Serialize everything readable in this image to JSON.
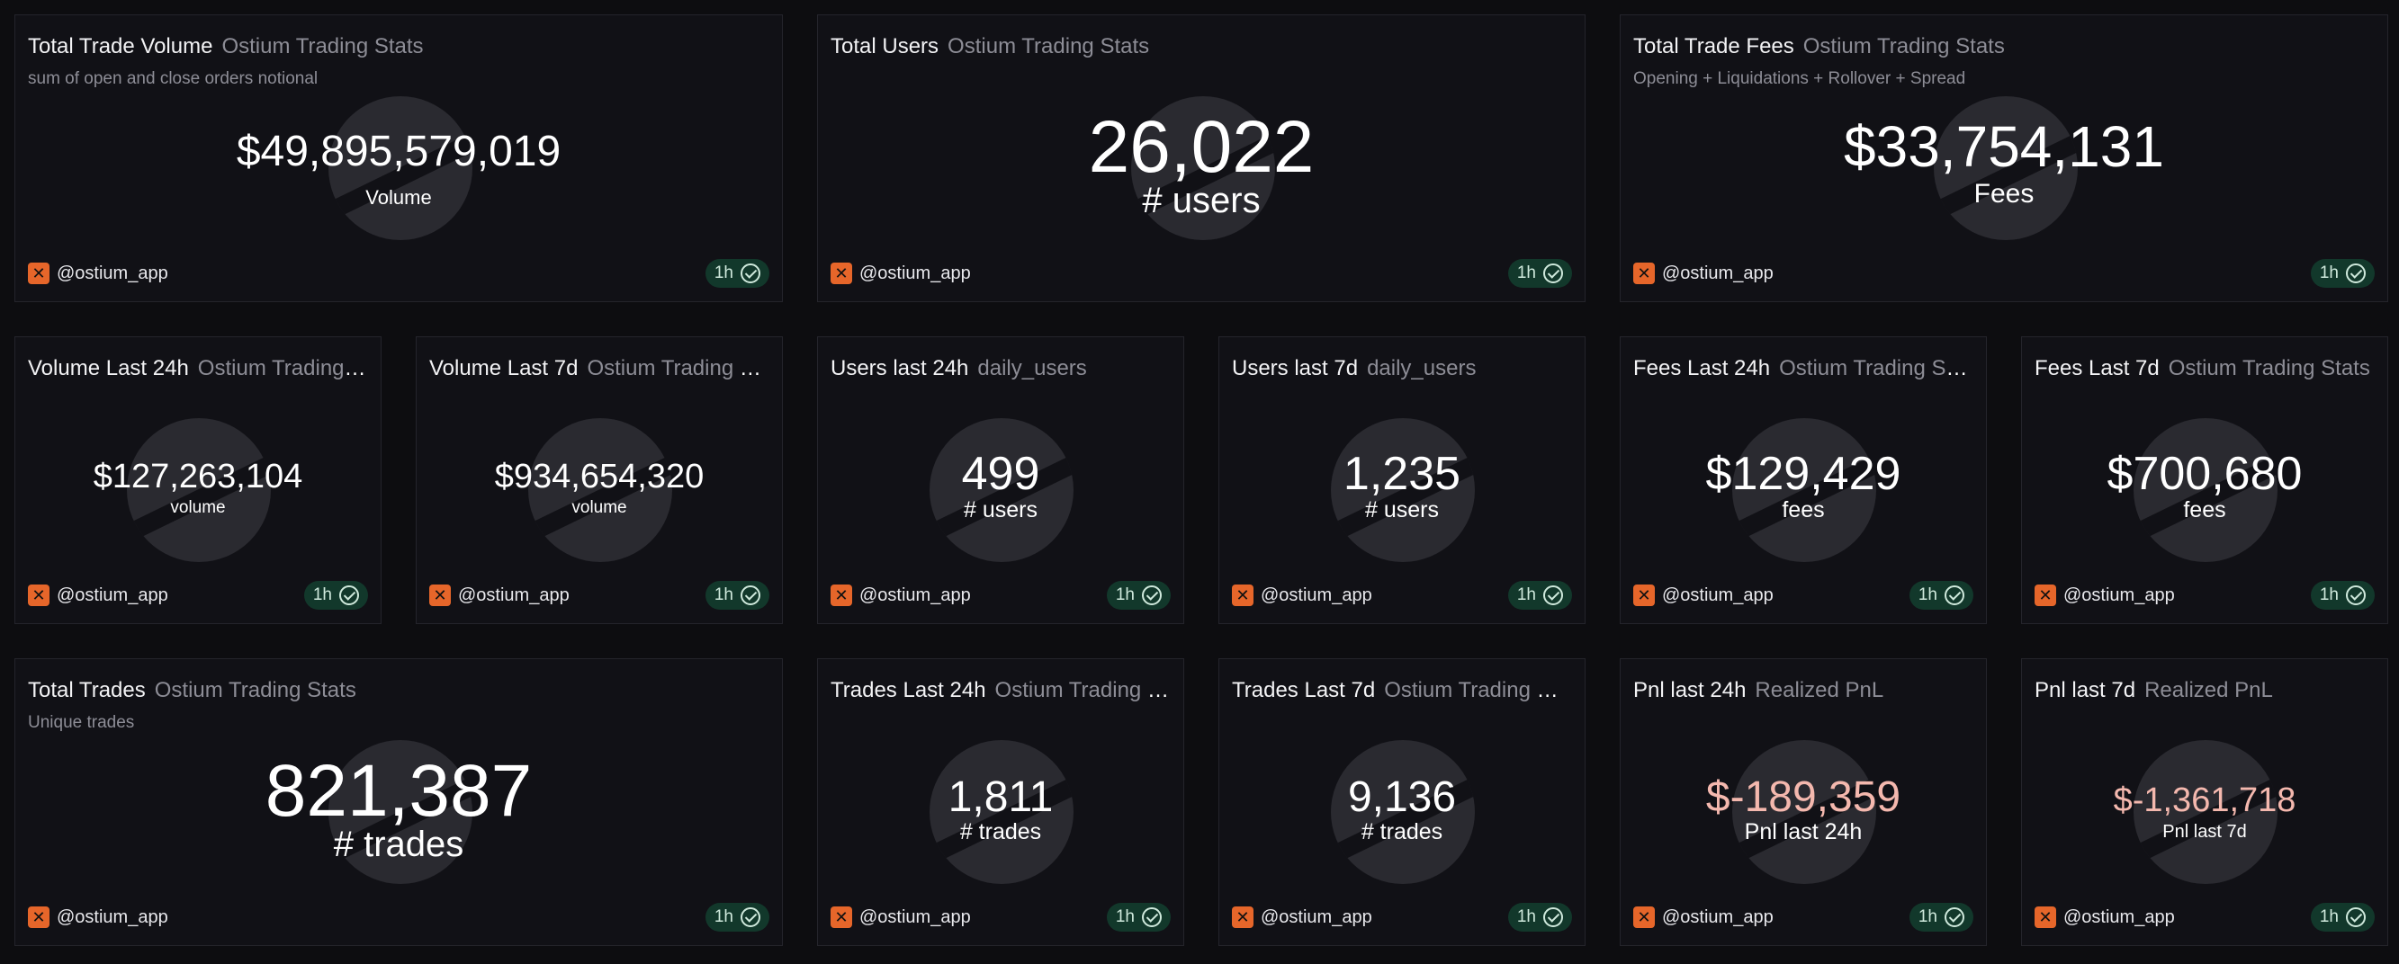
{
  "footer": {
    "author": "@ostium_app",
    "refresh": "1h"
  },
  "accent_colors": {
    "logo": "#e6662a",
    "badge_bg": "#12382b",
    "negative": "#f4b8ae"
  },
  "cards": [
    {
      "title": "Total Trade Volume",
      "source": "Ostium Trading Stats",
      "subtitle": "sum of open and close orders notional",
      "value": "$49,895,579,019",
      "label": "Volume"
    },
    {
      "title": "Total Users",
      "source": "Ostium Trading Stats",
      "value": "26,022",
      "label": "# users"
    },
    {
      "title": "Total Trade Fees",
      "source": "Ostium Trading Stats",
      "subtitle": "Opening + Liquidations + Rollover + Spread",
      "value": "$33,754,131",
      "label": "Fees"
    },
    {
      "title": "Volume Last 24h",
      "source": "Ostium Trading S...",
      "value": "$127,263,104",
      "label": "volume"
    },
    {
      "title": "Volume Last 7d",
      "source": "Ostium Trading Sta...",
      "value": "$934,654,320",
      "label": "volume"
    },
    {
      "title": "Users last 24h",
      "source": "daily_users",
      "value": "499",
      "label": "# users"
    },
    {
      "title": "Users last 7d",
      "source": "daily_users",
      "value": "1,235",
      "label": "# users"
    },
    {
      "title": "Fees Last 24h",
      "source": "Ostium Trading Stats",
      "value": "$129,429",
      "label": "fees"
    },
    {
      "title": "Fees Last 7d",
      "source": "Ostium Trading Stats",
      "value": "$700,680",
      "label": "fees"
    },
    {
      "title": "Total Trades",
      "source": "Ostium Trading Stats",
      "subtitle": "Unique trades",
      "value": "821,387",
      "label": "# trades"
    },
    {
      "title": "Trades Last 24h",
      "source": "Ostium Trading St...",
      "value": "1,811",
      "label": "# trades"
    },
    {
      "title": "Trades Last 7d",
      "source": "Ostium Trading Stats",
      "value": "9,136",
      "label": "# trades"
    },
    {
      "title": "Pnl last 24h",
      "source": "Realized PnL",
      "value": "$-189,359",
      "label": "Pnl last 24h"
    },
    {
      "title": "Pnl last 7d",
      "source": "Realized PnL",
      "value": "$-1,361,718",
      "label": "Pnl last 7d"
    }
  ]
}
